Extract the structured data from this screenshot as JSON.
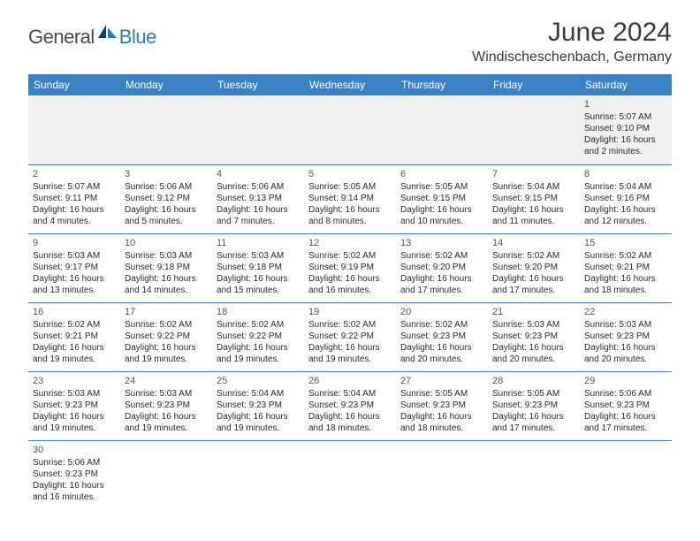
{
  "logo": {
    "main": "General",
    "accent": "Blue"
  },
  "title": "June 2024",
  "location": "Windischeschenbach, Germany",
  "colors": {
    "header_bg": "#3b82c4",
    "header_text": "#ffffff",
    "accent": "#2e7cc0",
    "text": "#2a2a2a",
    "firstrow_bg": "#f0f0f0",
    "border": "#3b82c4"
  },
  "weekdays": [
    "Sunday",
    "Monday",
    "Tuesday",
    "Wednesday",
    "Thursday",
    "Friday",
    "Saturday"
  ],
  "weeks": [
    [
      null,
      null,
      null,
      null,
      null,
      null,
      {
        "d": "1",
        "l1": "Sunrise: 5:07 AM",
        "l2": "Sunset: 9:10 PM",
        "l3": "Daylight: 16 hours",
        "l4": "and 2 minutes."
      }
    ],
    [
      {
        "d": "2",
        "l1": "Sunrise: 5:07 AM",
        "l2": "Sunset: 9:11 PM",
        "l3": "Daylight: 16 hours",
        "l4": "and 4 minutes."
      },
      {
        "d": "3",
        "l1": "Sunrise: 5:06 AM",
        "l2": "Sunset: 9:12 PM",
        "l3": "Daylight: 16 hours",
        "l4": "and 5 minutes."
      },
      {
        "d": "4",
        "l1": "Sunrise: 5:06 AM",
        "l2": "Sunset: 9:13 PM",
        "l3": "Daylight: 16 hours",
        "l4": "and 7 minutes."
      },
      {
        "d": "5",
        "l1": "Sunrise: 5:05 AM",
        "l2": "Sunset: 9:14 PM",
        "l3": "Daylight: 16 hours",
        "l4": "and 8 minutes."
      },
      {
        "d": "6",
        "l1": "Sunrise: 5:05 AM",
        "l2": "Sunset: 9:15 PM",
        "l3": "Daylight: 16 hours",
        "l4": "and 10 minutes."
      },
      {
        "d": "7",
        "l1": "Sunrise: 5:04 AM",
        "l2": "Sunset: 9:15 PM",
        "l3": "Daylight: 16 hours",
        "l4": "and 11 minutes."
      },
      {
        "d": "8",
        "l1": "Sunrise: 5:04 AM",
        "l2": "Sunset: 9:16 PM",
        "l3": "Daylight: 16 hours",
        "l4": "and 12 minutes."
      }
    ],
    [
      {
        "d": "9",
        "l1": "Sunrise: 5:03 AM",
        "l2": "Sunset: 9:17 PM",
        "l3": "Daylight: 16 hours",
        "l4": "and 13 minutes."
      },
      {
        "d": "10",
        "l1": "Sunrise: 5:03 AM",
        "l2": "Sunset: 9:18 PM",
        "l3": "Daylight: 16 hours",
        "l4": "and 14 minutes."
      },
      {
        "d": "11",
        "l1": "Sunrise: 5:03 AM",
        "l2": "Sunset: 9:18 PM",
        "l3": "Daylight: 16 hours",
        "l4": "and 15 minutes."
      },
      {
        "d": "12",
        "l1": "Sunrise: 5:02 AM",
        "l2": "Sunset: 9:19 PM",
        "l3": "Daylight: 16 hours",
        "l4": "and 16 minutes."
      },
      {
        "d": "13",
        "l1": "Sunrise: 5:02 AM",
        "l2": "Sunset: 9:20 PM",
        "l3": "Daylight: 16 hours",
        "l4": "and 17 minutes."
      },
      {
        "d": "14",
        "l1": "Sunrise: 5:02 AM",
        "l2": "Sunset: 9:20 PM",
        "l3": "Daylight: 16 hours",
        "l4": "and 17 minutes."
      },
      {
        "d": "15",
        "l1": "Sunrise: 5:02 AM",
        "l2": "Sunset: 9:21 PM",
        "l3": "Daylight: 16 hours",
        "l4": "and 18 minutes."
      }
    ],
    [
      {
        "d": "16",
        "l1": "Sunrise: 5:02 AM",
        "l2": "Sunset: 9:21 PM",
        "l3": "Daylight: 16 hours",
        "l4": "and 19 minutes."
      },
      {
        "d": "17",
        "l1": "Sunrise: 5:02 AM",
        "l2": "Sunset: 9:22 PM",
        "l3": "Daylight: 16 hours",
        "l4": "and 19 minutes."
      },
      {
        "d": "18",
        "l1": "Sunrise: 5:02 AM",
        "l2": "Sunset: 9:22 PM",
        "l3": "Daylight: 16 hours",
        "l4": "and 19 minutes."
      },
      {
        "d": "19",
        "l1": "Sunrise: 5:02 AM",
        "l2": "Sunset: 9:22 PM",
        "l3": "Daylight: 16 hours",
        "l4": "and 19 minutes."
      },
      {
        "d": "20",
        "l1": "Sunrise: 5:02 AM",
        "l2": "Sunset: 9:23 PM",
        "l3": "Daylight: 16 hours",
        "l4": "and 20 minutes."
      },
      {
        "d": "21",
        "l1": "Sunrise: 5:03 AM",
        "l2": "Sunset: 9:23 PM",
        "l3": "Daylight: 16 hours",
        "l4": "and 20 minutes."
      },
      {
        "d": "22",
        "l1": "Sunrise: 5:03 AM",
        "l2": "Sunset: 9:23 PM",
        "l3": "Daylight: 16 hours",
        "l4": "and 20 minutes."
      }
    ],
    [
      {
        "d": "23",
        "l1": "Sunrise: 5:03 AM",
        "l2": "Sunset: 9:23 PM",
        "l3": "Daylight: 16 hours",
        "l4": "and 19 minutes."
      },
      {
        "d": "24",
        "l1": "Sunrise: 5:03 AM",
        "l2": "Sunset: 9:23 PM",
        "l3": "Daylight: 16 hours",
        "l4": "and 19 minutes."
      },
      {
        "d": "25",
        "l1": "Sunrise: 5:04 AM",
        "l2": "Sunset: 9:23 PM",
        "l3": "Daylight: 16 hours",
        "l4": "and 19 minutes."
      },
      {
        "d": "26",
        "l1": "Sunrise: 5:04 AM",
        "l2": "Sunset: 9:23 PM",
        "l3": "Daylight: 16 hours",
        "l4": "and 18 minutes."
      },
      {
        "d": "27",
        "l1": "Sunrise: 5:05 AM",
        "l2": "Sunset: 9:23 PM",
        "l3": "Daylight: 16 hours",
        "l4": "and 18 minutes."
      },
      {
        "d": "28",
        "l1": "Sunrise: 5:05 AM",
        "l2": "Sunset: 9:23 PM",
        "l3": "Daylight: 16 hours",
        "l4": "and 17 minutes."
      },
      {
        "d": "29",
        "l1": "Sunrise: 5:06 AM",
        "l2": "Sunset: 9:23 PM",
        "l3": "Daylight: 16 hours",
        "l4": "and 17 minutes."
      }
    ],
    [
      {
        "d": "30",
        "l1": "Sunrise: 5:06 AM",
        "l2": "Sunset: 9:23 PM",
        "l3": "Daylight: 16 hours",
        "l4": "and 16 minutes."
      },
      null,
      null,
      null,
      null,
      null,
      null
    ]
  ]
}
